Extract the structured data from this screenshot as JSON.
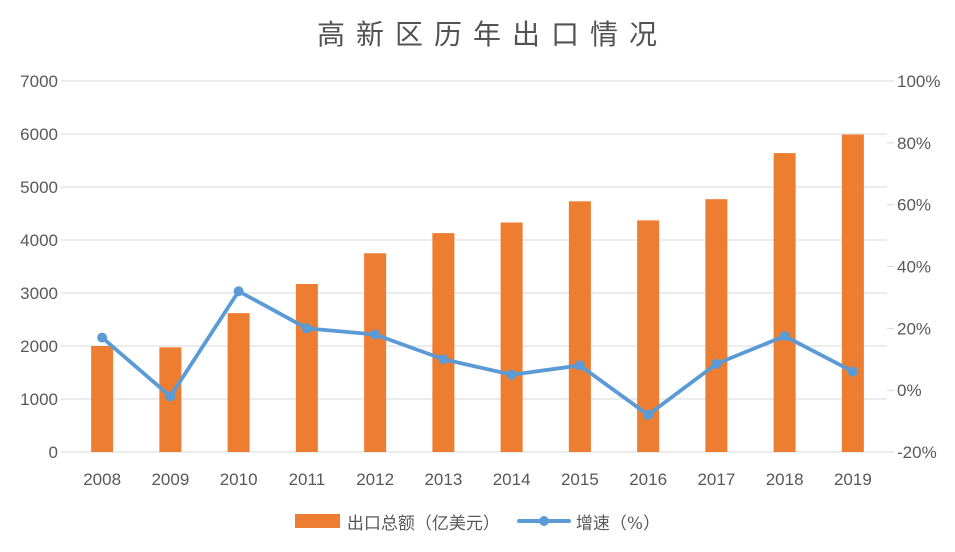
{
  "colors": {
    "bar": "#ED7D31",
    "line": "#5B9BD5",
    "grid": "#D9D9D9",
    "axis_text": "#595959",
    "title_text": "#535353",
    "background": "#FFFFFF"
  },
  "legend": {
    "items": [
      {
        "label": "出口总额（亿美元）",
        "series": "bar"
      },
      {
        "label": "增速（%）",
        "series": "line"
      }
    ]
  },
  "chart_data": {
    "type": "combo",
    "title": "高新区历年出口情况",
    "categories": [
      "2008",
      "2009",
      "2010",
      "2011",
      "2012",
      "2013",
      "2014",
      "2015",
      "2016",
      "2017",
      "2018",
      "2019"
    ],
    "series": [
      {
        "name": "出口总额（亿美元）",
        "type": "bar",
        "axis": "left",
        "values": [
          2000,
          1975,
          2620,
          3170,
          3750,
          4130,
          4330,
          4730,
          4370,
          4770,
          5640,
          5990
        ]
      },
      {
        "name": "增速（%）",
        "type": "line",
        "axis": "right",
        "values": [
          17,
          -2,
          32,
          20,
          18,
          10,
          5,
          8,
          -8,
          8.5,
          17.5,
          6
        ]
      }
    ],
    "left_axis": {
      "min": 0,
      "max": 7000,
      "step": 1000,
      "ticks": [
        0,
        1000,
        2000,
        3000,
        4000,
        5000,
        6000,
        7000
      ]
    },
    "right_axis": {
      "min": -20,
      "max": 100,
      "step": 20,
      "ticks": [
        -20,
        0,
        20,
        40,
        60,
        80,
        100
      ],
      "suffix": "%"
    },
    "grid": true,
    "legend_position": "bottom"
  }
}
